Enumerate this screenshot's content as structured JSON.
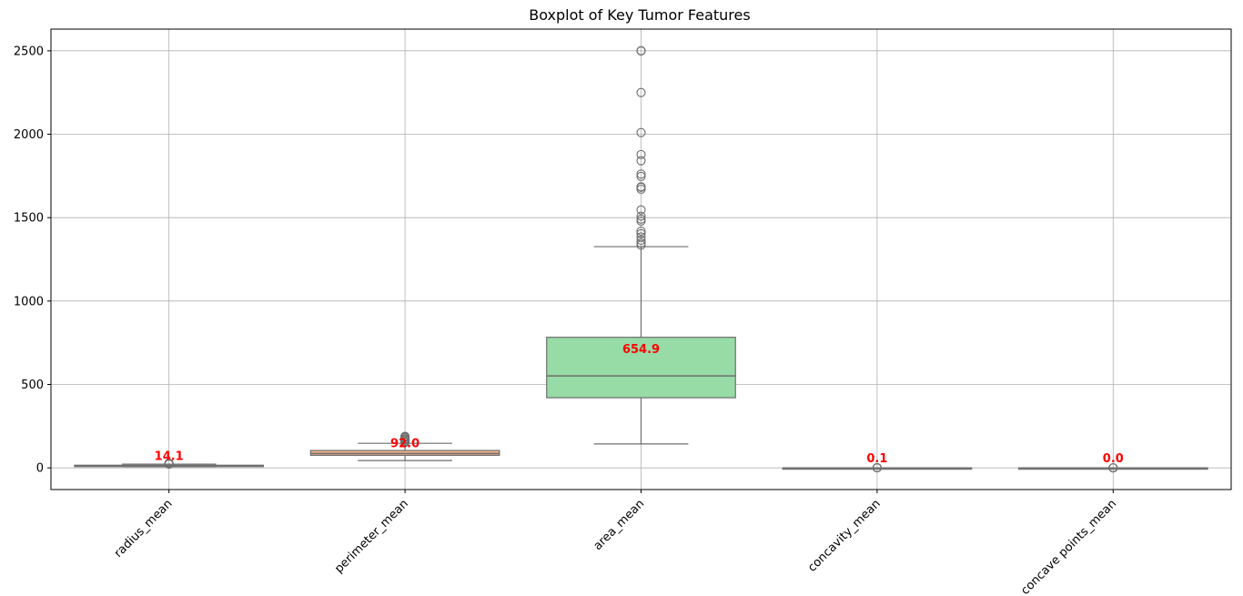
{
  "chart_data": {
    "type": "box",
    "title": "Boxplot of Key Tumor Features",
    "xlabel": "",
    "ylabel": "",
    "ylim": [
      -130,
      2630
    ],
    "yticks": [
      0,
      500,
      1000,
      1500,
      2000,
      2500
    ],
    "ytick_labels": [
      "0",
      "500",
      "1000",
      "1500",
      "2000",
      "2500"
    ],
    "grid": true,
    "legend": "none",
    "categories": [
      "radius_mean",
      "perimeter_mean",
      "area_mean",
      "concavity_mean",
      "concave points_mean"
    ],
    "colors": [
      "#8dbfe0",
      "#f5b38a",
      "#97dba6",
      "#f3a3a0",
      "#c9b3dd"
    ],
    "median_color": "#6e6e6e",
    "annotation_color": "#ff0000",
    "boxes": [
      {
        "whislo": 7.0,
        "q1": 11.7,
        "med": 13.4,
        "q3": 15.8,
        "whishi": 21.9,
        "fliers": [
          22.3,
          23.3,
          24.3,
          25.2,
          27.4,
          28.1
        ]
      },
      {
        "whislo": 43.8,
        "q1": 75.2,
        "med": 86.2,
        "q3": 104.1,
        "whishi": 147.2,
        "fliers": [
          152.8,
          155.1,
          158.9,
          166.2,
          171.5,
          174.2,
          182.1,
          186.9,
          188.5
        ]
      },
      {
        "whislo": 143.5,
        "q1": 420.3,
        "med": 551.1,
        "q3": 782.7,
        "whishi": 1326.0,
        "fliers": [
          1335,
          1347,
          1364,
          1384,
          1404,
          1419,
          1479,
          1491,
          1509,
          1546,
          1670,
          1682,
          1685,
          1747,
          1761,
          1841,
          1878,
          2010,
          2250,
          2499,
          2501
        ]
      },
      {
        "whislo": 0.0,
        "q1": 0.03,
        "med": 0.06,
        "q3": 0.13,
        "whishi": 0.28,
        "fliers": [
          0.31,
          0.33,
          0.37,
          0.43
        ]
      },
      {
        "whislo": 0.0,
        "q1": 0.02,
        "med": 0.03,
        "q3": 0.07,
        "whishi": 0.15,
        "fliers": [
          0.16,
          0.18,
          0.2
        ]
      }
    ],
    "annotations": [
      {
        "category": "radius_mean",
        "text": "14.1",
        "value": 14.1
      },
      {
        "category": "perimeter_mean",
        "text": "92.0",
        "value": 92.0
      },
      {
        "category": "area_mean",
        "text": "654.9",
        "value": 654.9
      },
      {
        "category": "concavity_mean",
        "text": "0.1",
        "value": 0.1
      },
      {
        "category": "concave points_mean",
        "text": "0.0",
        "value": 0.0
      }
    ]
  }
}
